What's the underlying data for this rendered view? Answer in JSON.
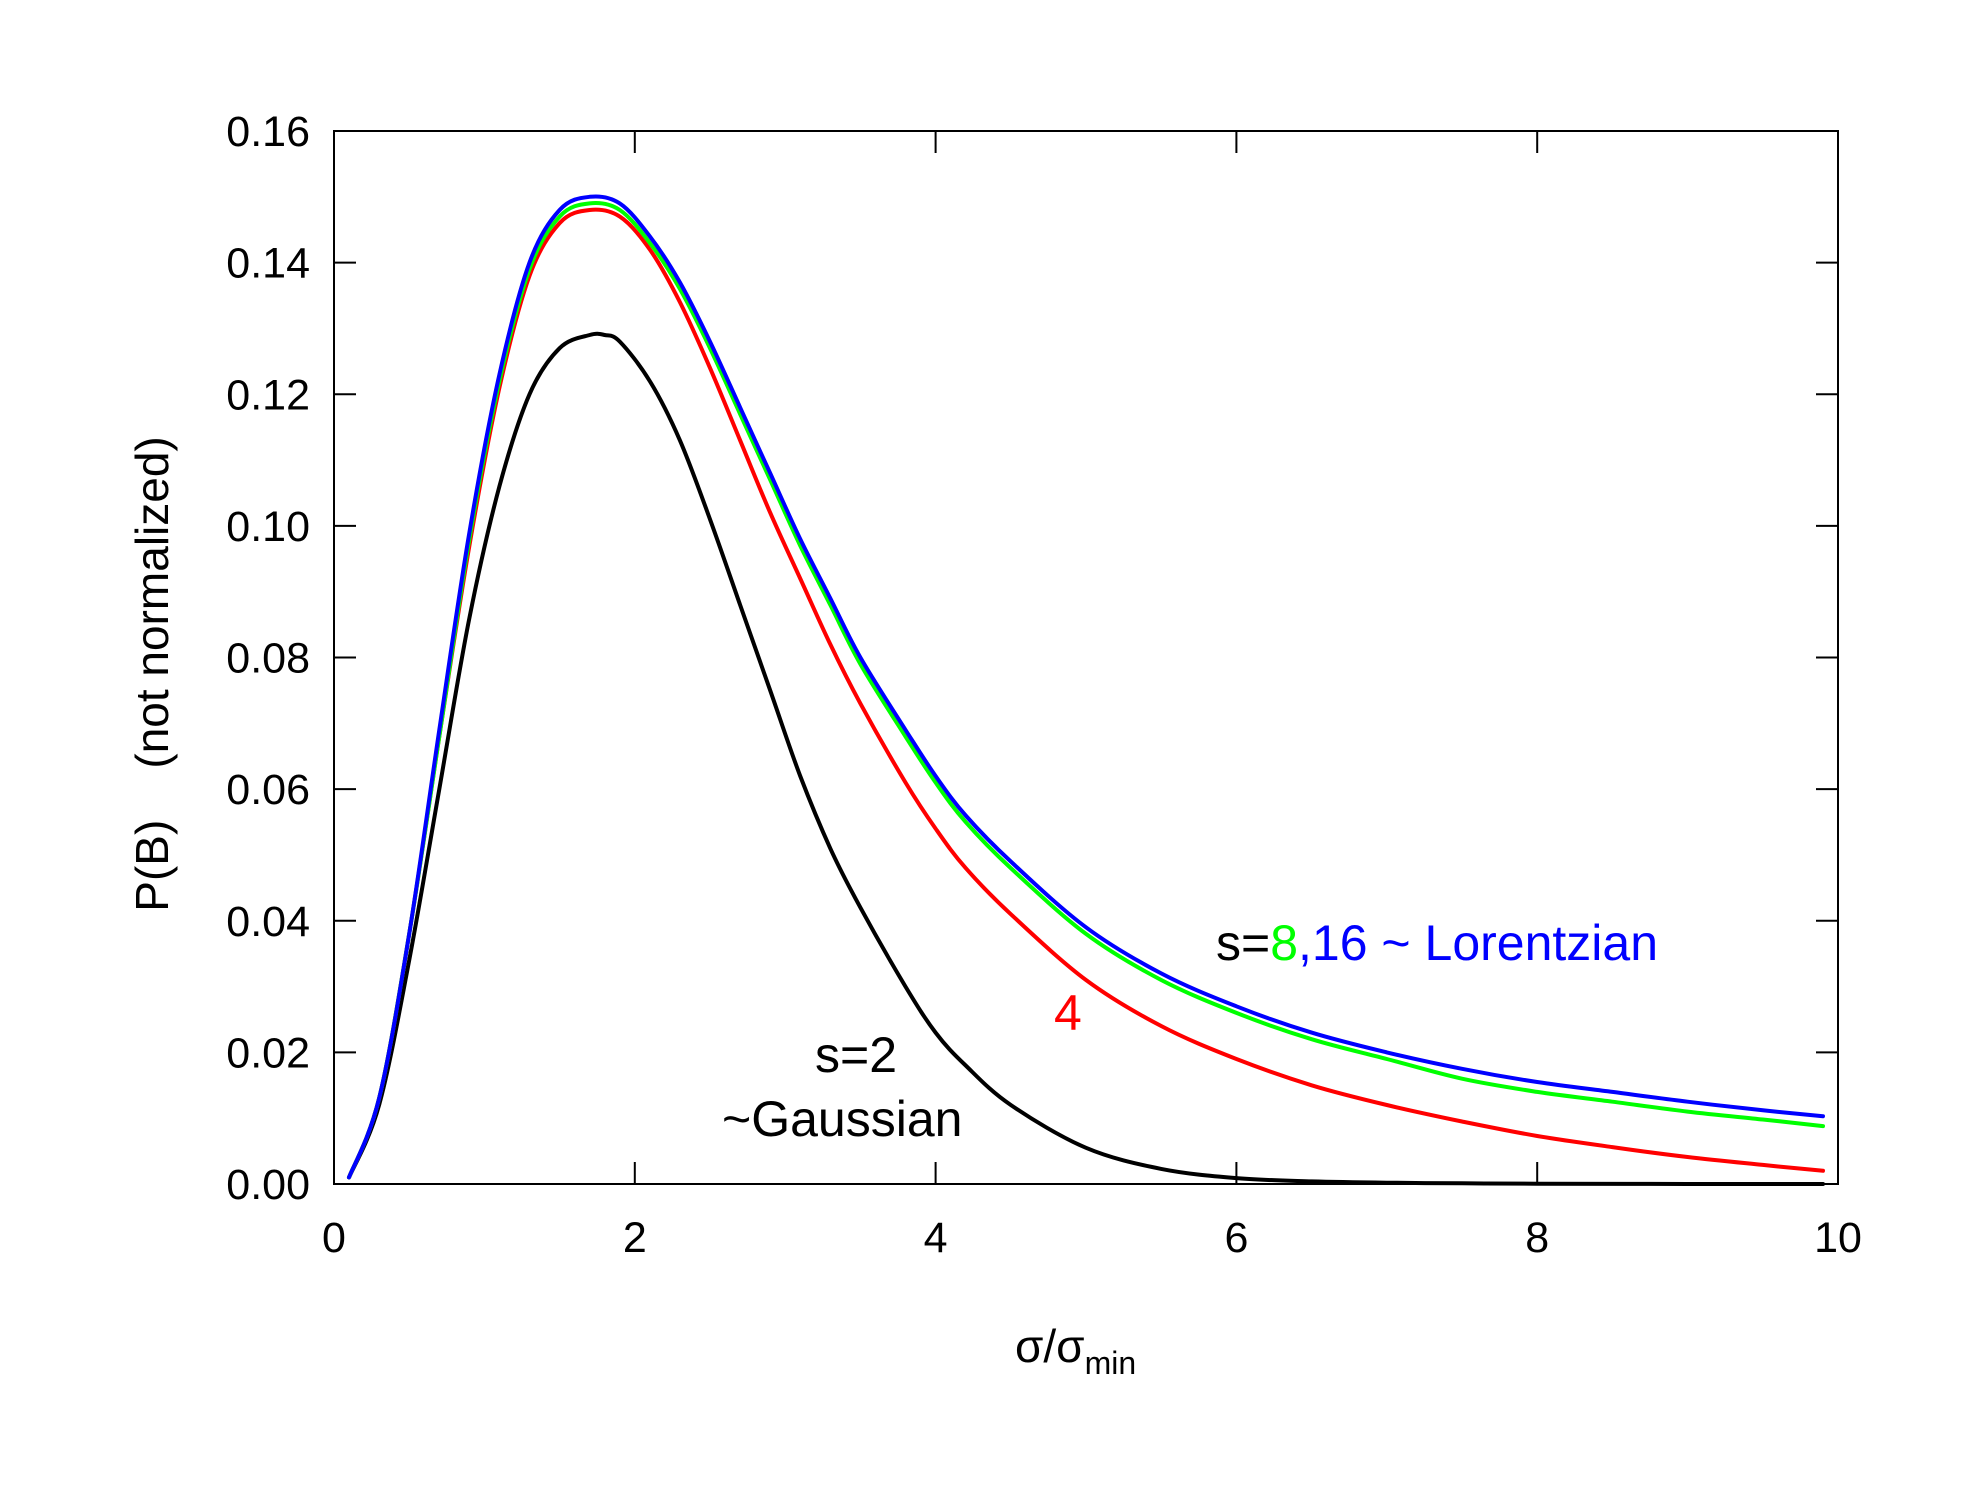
{
  "chart_data": {
    "type": "line",
    "title": "",
    "xlabel": {
      "main": "σ/σ",
      "sub": "min"
    },
    "ylabel": "P(B)    (not normalized)",
    "xlim": [
      0,
      10
    ],
    "ylim": [
      0,
      0.16
    ],
    "xticks": [
      0,
      2,
      4,
      6,
      8,
      10
    ],
    "yticks": [
      0.0,
      0.02,
      0.04,
      0.06,
      0.08,
      0.1,
      0.12,
      0.14,
      0.16
    ],
    "xtick_labels": [
      "0",
      "2",
      "4",
      "6",
      "8",
      "10"
    ],
    "ytick_labels": [
      "0.00",
      "0.02",
      "0.04",
      "0.06",
      "0.08",
      "0.10",
      "0.12",
      "0.14",
      "0.16"
    ],
    "grid": false,
    "series": [
      {
        "s": 2,
        "color": "#000000",
        "x": [
          0.1,
          0.3,
          0.5,
          0.7,
          0.9,
          1.1,
          1.3,
          1.5,
          1.7,
          1.8,
          1.9,
          2.1,
          2.3,
          2.5,
          2.7,
          2.9,
          3.1,
          3.3,
          3.5,
          3.8,
          4.0,
          4.2,
          4.5,
          5.0,
          5.5,
          6.0,
          6.5,
          7.0,
          7.5,
          8.0,
          9.0,
          9.9
        ],
        "y": [
          0.001,
          0.012,
          0.034,
          0.06,
          0.086,
          0.106,
          0.12,
          0.127,
          0.129,
          0.129,
          0.128,
          0.122,
          0.113,
          0.101,
          0.088,
          0.075,
          0.062,
          0.051,
          0.042,
          0.03,
          0.023,
          0.018,
          0.012,
          0.0055,
          0.0023,
          0.0009,
          0.0004,
          0.0002,
          0.0001,
          5e-05,
          0.0,
          0.0
        ]
      },
      {
        "s": 4,
        "color": "#ff0000",
        "x": [
          0.1,
          0.3,
          0.5,
          0.7,
          0.9,
          1.1,
          1.3,
          1.5,
          1.7,
          1.9,
          2.1,
          2.3,
          2.5,
          2.7,
          2.9,
          3.1,
          3.3,
          3.5,
          3.8,
          4.0,
          4.2,
          4.5,
          5.0,
          5.5,
          6.0,
          6.5,
          7.0,
          7.5,
          8.0,
          8.5,
          9.0,
          9.5,
          9.9
        ],
        "y": [
          0.001,
          0.013,
          0.038,
          0.068,
          0.097,
          0.121,
          0.138,
          0.146,
          0.148,
          0.147,
          0.142,
          0.134,
          0.124,
          0.113,
          0.102,
          0.092,
          0.082,
          0.073,
          0.061,
          0.054,
          0.048,
          0.041,
          0.031,
          0.024,
          0.019,
          0.015,
          0.012,
          0.0095,
          0.0073,
          0.0056,
          0.0041,
          0.0029,
          0.002
        ]
      },
      {
        "s": 8,
        "color": "#00ff00",
        "x": [
          0.1,
          0.3,
          0.5,
          0.7,
          0.9,
          1.1,
          1.3,
          1.5,
          1.7,
          1.9,
          2.1,
          2.3,
          2.5,
          2.7,
          2.9,
          3.1,
          3.3,
          3.5,
          3.8,
          4.0,
          4.2,
          4.5,
          5.0,
          5.5,
          6.0,
          6.5,
          7.0,
          7.5,
          8.0,
          8.5,
          9.0,
          9.5,
          9.9
        ],
        "y": [
          0.001,
          0.013,
          0.038,
          0.068,
          0.098,
          0.122,
          0.139,
          0.147,
          0.149,
          0.148,
          0.143,
          0.136,
          0.127,
          0.117,
          0.107,
          0.097,
          0.088,
          0.079,
          0.068,
          0.061,
          0.055,
          0.048,
          0.038,
          0.031,
          0.026,
          0.022,
          0.019,
          0.016,
          0.014,
          0.0125,
          0.011,
          0.0098,
          0.0088
        ]
      },
      {
        "s": 16,
        "color": "#0000ff",
        "x": [
          0.1,
          0.3,
          0.5,
          0.7,
          0.9,
          1.1,
          1.3,
          1.5,
          1.7,
          1.9,
          2.1,
          2.3,
          2.5,
          2.7,
          2.9,
          3.1,
          3.3,
          3.5,
          3.8,
          4.0,
          4.2,
          4.5,
          5.0,
          5.5,
          6.0,
          6.5,
          7.0,
          7.5,
          8.0,
          8.5,
          9.0,
          9.5,
          9.9
        ],
        "y": [
          0.001,
          0.013,
          0.038,
          0.069,
          0.099,
          0.123,
          0.14,
          0.148,
          0.15,
          0.149,
          0.144,
          0.137,
          0.128,
          0.118,
          0.108,
          0.098,
          0.089,
          0.08,
          0.069,
          0.062,
          0.056,
          0.049,
          0.039,
          0.032,
          0.027,
          0.023,
          0.02,
          0.0175,
          0.0155,
          0.014,
          0.0125,
          0.0112,
          0.0103
        ]
      }
    ],
    "annotations": {
      "s2_line1": "s=2",
      "s2_line2": "~Gaussian",
      "s4": "4",
      "lorentz_prefix": "s=",
      "lorentz_8": "8",
      "lorentz_rest": ",16 ~ Lorentzian"
    }
  }
}
